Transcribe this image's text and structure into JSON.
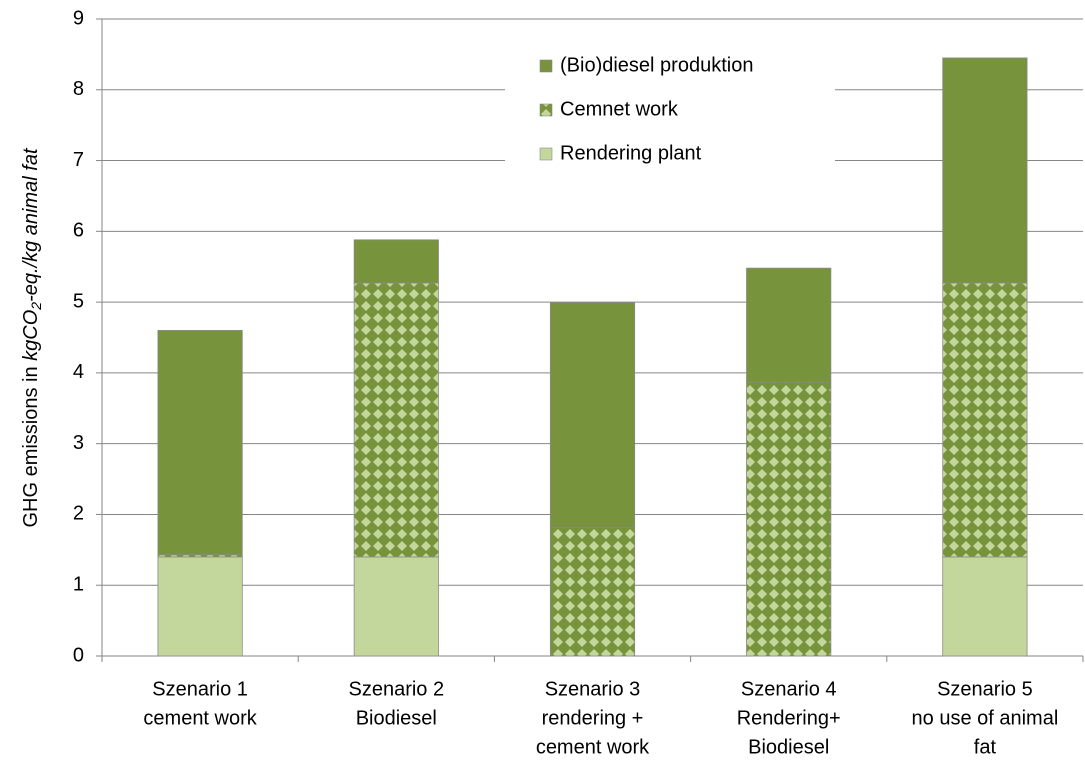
{
  "chart_data": {
    "type": "stacked_bar",
    "ylabel": [
      "GHG emissions  in ",
      "kgCO",
      "2",
      "-eq./kg animal fat"
    ],
    "categories": [
      [
        "Szenario 1",
        "cement work"
      ],
      [
        "Szenario 2",
        "Biodiesel"
      ],
      [
        "Szenario 3",
        "rendering +",
        "cement work"
      ],
      [
        "Szenario 4",
        "Rendering+",
        "Biodiesel"
      ],
      [
        "Szenario 5",
        "no use of animal",
        "fat"
      ]
    ],
    "series": [
      {
        "name": "Rendering plant",
        "color": "#c3d69b",
        "values": [
          1.4,
          1.4,
          0,
          0,
          1.4
        ]
      },
      {
        "name": "Cemnet work",
        "color": "#77933c",
        "pattern": "checker",
        "values": [
          0.03,
          3.87,
          1.82,
          3.87,
          3.87
        ]
      },
      {
        "name": "(Bio)diesel produktion",
        "color": "#77933c",
        "values": [
          3.17,
          0.61,
          3.17,
          1.61,
          3.18
        ]
      }
    ],
    "ylim": [
      0,
      9
    ],
    "yticks": [
      0,
      1,
      2,
      3,
      4,
      5,
      6,
      7,
      8,
      9
    ],
    "grid": true,
    "legend": "top"
  }
}
